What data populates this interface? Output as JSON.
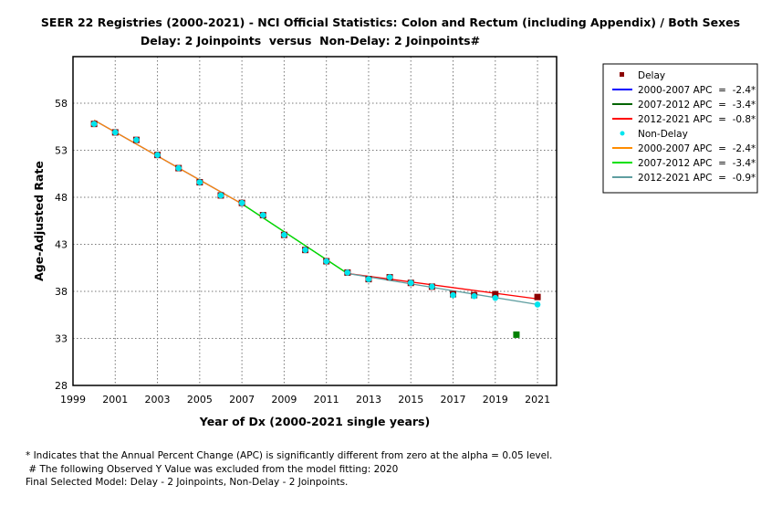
{
  "chart_data": {
    "type": "line",
    "title": "SEER 22 Registries (2000-2021) - NCI Official Statistics: Colon and Rectum (including Appendix) / Both Sexes",
    "subtitle": "Delay: 2 Joinpoints  versus  Non-Delay: 2 Joinpoints#",
    "xlabel": "Year of Dx (2000-2021 single years)",
    "ylabel": "Age-Adjusted Rate",
    "xlim": [
      1999,
      2022
    ],
    "ylim": [
      28,
      62
    ],
    "xticks": [
      1999,
      2001,
      2003,
      2005,
      2007,
      2009,
      2011,
      2013,
      2015,
      2017,
      2019,
      2021
    ],
    "yticks": [
      28,
      33,
      38,
      43,
      48,
      53,
      58
    ],
    "grid": true,
    "legend_position": "right",
    "x": [
      2000,
      2001,
      2002,
      2003,
      2004,
      2005,
      2006,
      2007,
      2008,
      2009,
      2010,
      2011,
      2012,
      2013,
      2014,
      2015,
      2016,
      2017,
      2018,
      2019,
      2020,
      2021
    ],
    "series": [
      {
        "name": "Delay",
        "type": "scatter",
        "color": "#8b0000",
        "values": [
          55.8,
          54.9,
          54.1,
          52.5,
          51.1,
          49.6,
          48.2,
          47.4,
          46.1,
          44.0,
          42.4,
          41.2,
          40.0,
          39.3,
          39.5,
          38.9,
          38.5,
          37.7,
          37.6,
          37.7,
          33.4,
          37.4
        ]
      },
      {
        "name": "2000-2007 APC  =  -2.4*",
        "type": "line",
        "color": "#0000ff",
        "x": [
          2000,
          2007
        ],
        "values": [
          56.2,
          47.3
        ]
      },
      {
        "name": "2007-2012 APC  =  -3.4*",
        "type": "line",
        "color": "#006400",
        "x": [
          2007,
          2012
        ],
        "values": [
          47.3,
          39.9
        ]
      },
      {
        "name": "2012-2021 APC  =  -0.8*",
        "type": "line",
        "color": "#ff0000",
        "x": [
          2012,
          2021
        ],
        "values": [
          39.9,
          37.2
        ]
      },
      {
        "name": "Non-Delay",
        "type": "scatter",
        "color": "#00e5ee",
        "values": [
          55.8,
          54.9,
          54.1,
          52.5,
          51.1,
          49.6,
          48.2,
          47.4,
          46.1,
          44.0,
          42.4,
          41.2,
          40.0,
          39.3,
          39.5,
          38.9,
          38.5,
          37.6,
          37.5,
          37.3,
          33.4,
          36.6
        ]
      },
      {
        "name": "2000-2007 APC  =  -2.4*",
        "type": "line",
        "color": "#ff8c00",
        "x": [
          2000,
          2007
        ],
        "values": [
          56.2,
          47.3
        ]
      },
      {
        "name": "2007-2012 APC  =  -3.4*",
        "type": "line",
        "color": "#00e000",
        "x": [
          2007,
          2012
        ],
        "values": [
          47.3,
          39.9
        ]
      },
      {
        "name": "2012-2021 APC  =  -0.9*",
        "type": "line",
        "color": "#5f9ea0",
        "x": [
          2012,
          2021
        ],
        "values": [
          39.9,
          36.6
        ]
      }
    ],
    "excluded_point": {
      "x": 2020,
      "color": "#008000"
    }
  },
  "footnotes": [
    "* Indicates that the Annual Percent Change (APC) is significantly different from zero at the alpha = 0.05 level.",
    " # The following Observed Y Value was excluded from the model fitting: 2020",
    "Final Selected Model: Delay - 2 Joinpoints, Non-Delay - 2 Joinpoints."
  ]
}
